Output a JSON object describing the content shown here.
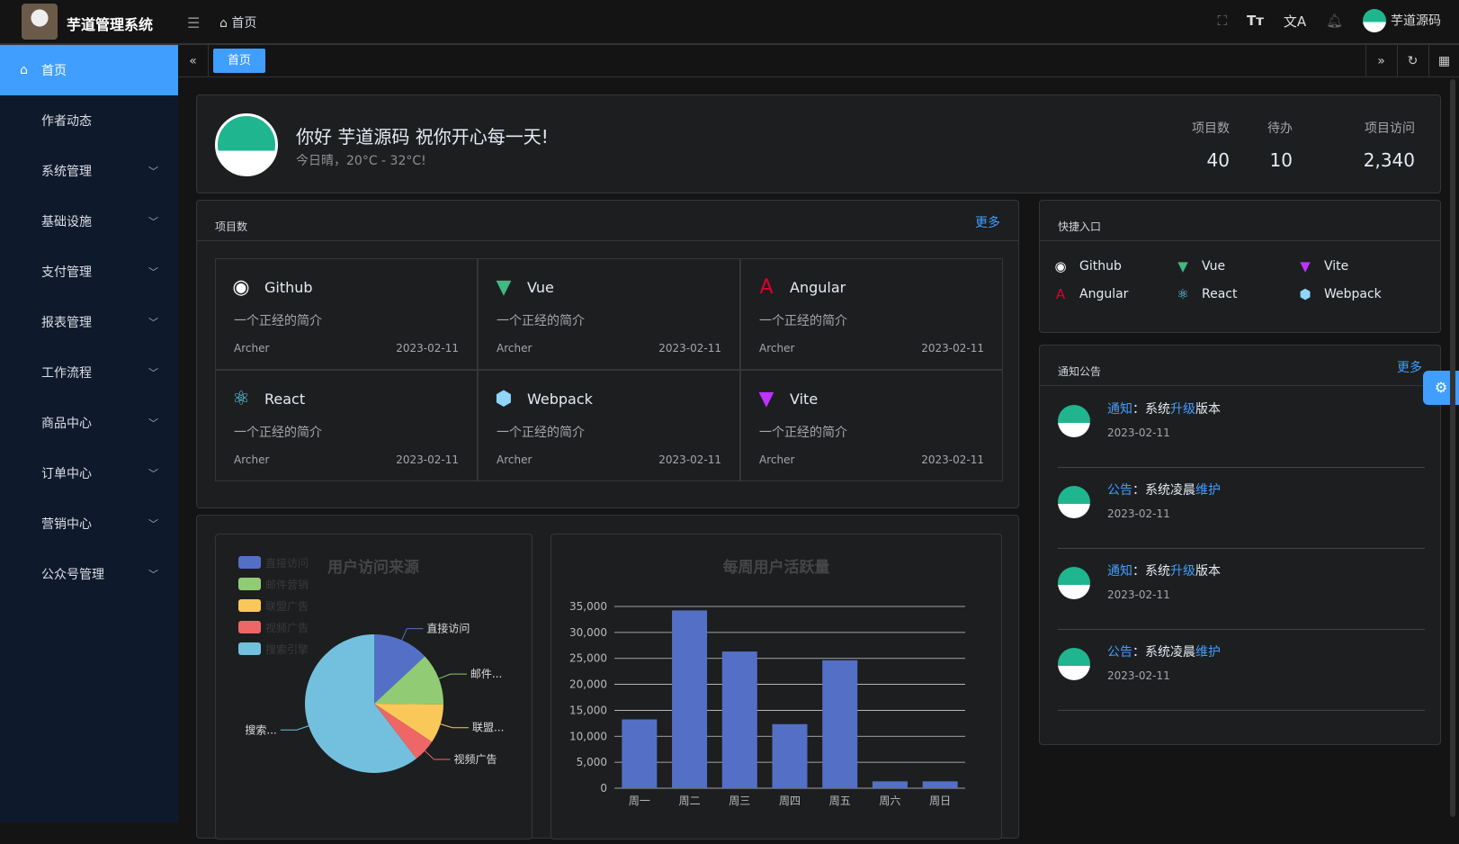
{
  "header": {
    "app_name": "芋道管理系统",
    "breadcrumb": "首页",
    "user": "芋道源码",
    "icons": [
      "fullscreen-icon",
      "font-size-icon",
      "translate-icon",
      "bell-icon"
    ]
  },
  "sidebar": {
    "items": [
      {
        "label": "首页",
        "active": true
      },
      {
        "label": "作者动态"
      },
      {
        "label": "系统管理",
        "expandable": true
      },
      {
        "label": "基础设施",
        "expandable": true
      },
      {
        "label": "支付管理",
        "expandable": true
      },
      {
        "label": "报表管理",
        "expandable": true
      },
      {
        "label": "工作流程",
        "expandable": true
      },
      {
        "label": "商品中心",
        "expandable": true
      },
      {
        "label": "订单中心",
        "expandable": true
      },
      {
        "label": "营销中心",
        "expandable": true
      },
      {
        "label": "公众号管理",
        "expandable": true
      }
    ]
  },
  "tabs": [
    {
      "label": "首页",
      "active": true
    }
  ],
  "welcome": {
    "greeting": "你好 芋道源码 祝你开心每一天!",
    "weather": "今日晴，20°C - 32°C!",
    "stats": [
      {
        "label": "项目数",
        "value": "40"
      },
      {
        "label": "待办",
        "value": "10"
      },
      {
        "label": "项目访问",
        "value": "2,340"
      }
    ]
  },
  "projects": {
    "title": "项目数",
    "more": "更多",
    "items": [
      {
        "name": "Github",
        "desc": "一个正经的简介",
        "author": "Archer",
        "date": "2023-02-11",
        "icon": "github-icon",
        "color": "#ffffff"
      },
      {
        "name": "Vue",
        "desc": "一个正经的简介",
        "author": "Archer",
        "date": "2023-02-11",
        "icon": "vue-icon",
        "color": "#42b883"
      },
      {
        "name": "Angular",
        "desc": "一个正经的简介",
        "author": "Archer",
        "date": "2023-02-11",
        "icon": "angular-icon",
        "color": "#dd0031"
      },
      {
        "name": "React",
        "desc": "一个正经的简介",
        "author": "Archer",
        "date": "2023-02-11",
        "icon": "react-icon",
        "color": "#61dafb"
      },
      {
        "name": "Webpack",
        "desc": "一个正经的简介",
        "author": "Archer",
        "date": "2023-02-11",
        "icon": "webpack-icon",
        "color": "#8ed6fb"
      },
      {
        "name": "Vite",
        "desc": "一个正经的简介",
        "author": "Archer",
        "date": "2023-02-11",
        "icon": "vite-icon",
        "color": "#bd34fe"
      }
    ]
  },
  "shortcuts": {
    "title": "快捷入口",
    "items": [
      {
        "name": "Github",
        "icon": "github-icon",
        "color": "#ffffff"
      },
      {
        "name": "Vue",
        "icon": "vue-icon",
        "color": "#42b883"
      },
      {
        "name": "Vite",
        "icon": "vite-icon",
        "color": "#bd34fe"
      },
      {
        "name": "Angular",
        "icon": "angular-icon",
        "color": "#dd0031"
      },
      {
        "name": "React",
        "icon": "react-icon",
        "color": "#61dafb"
      },
      {
        "name": "Webpack",
        "icon": "webpack-icon",
        "color": "#8ed6fb"
      }
    ]
  },
  "notices": {
    "title": "通知公告",
    "more": "更多",
    "items": [
      {
        "type": "通知",
        "pre": "：系统",
        "hl": "升级",
        "post": "版本",
        "date": "2023-02-11"
      },
      {
        "type": "公告",
        "pre": "：系统凌晨",
        "hl": "维护",
        "post": "",
        "date": "2023-02-11"
      },
      {
        "type": "通知",
        "pre": "：系统",
        "hl": "升级",
        "post": "版本",
        "date": "2023-02-11"
      },
      {
        "type": "公告",
        "pre": "：系统凌晨",
        "hl": "维护",
        "post": "",
        "date": "2023-02-11"
      }
    ]
  },
  "chart_data": [
    {
      "type": "pie",
      "title": "用户访问来源",
      "legend_position": "top-left",
      "categories": [
        "直接访问",
        "邮件营销",
        "联盟广告",
        "视频广告",
        "搜索引擎"
      ],
      "slice_labels": [
        "直接访问",
        "邮件...",
        "联盟...",
        "视频广告",
        "搜索..."
      ],
      "values": [
        335,
        310,
        234,
        135,
        1548
      ],
      "colors": [
        "#5470c6",
        "#91cc75",
        "#fac858",
        "#ee6666",
        "#73c0de"
      ]
    },
    {
      "type": "bar",
      "title": "每周用户活跃量",
      "categories": [
        "周一",
        "周二",
        "周三",
        "周四",
        "周五",
        "周六",
        "周日"
      ],
      "values": [
        13253,
        34235,
        26321,
        12340,
        24643,
        1322,
        1324
      ],
      "ylim": [
        0,
        35000
      ],
      "yticks": [
        "0",
        "5,000",
        "10,000",
        "15,000",
        "20,000",
        "25,000",
        "30,000",
        "35,000"
      ],
      "grid": true,
      "color": "#5470c6"
    }
  ]
}
